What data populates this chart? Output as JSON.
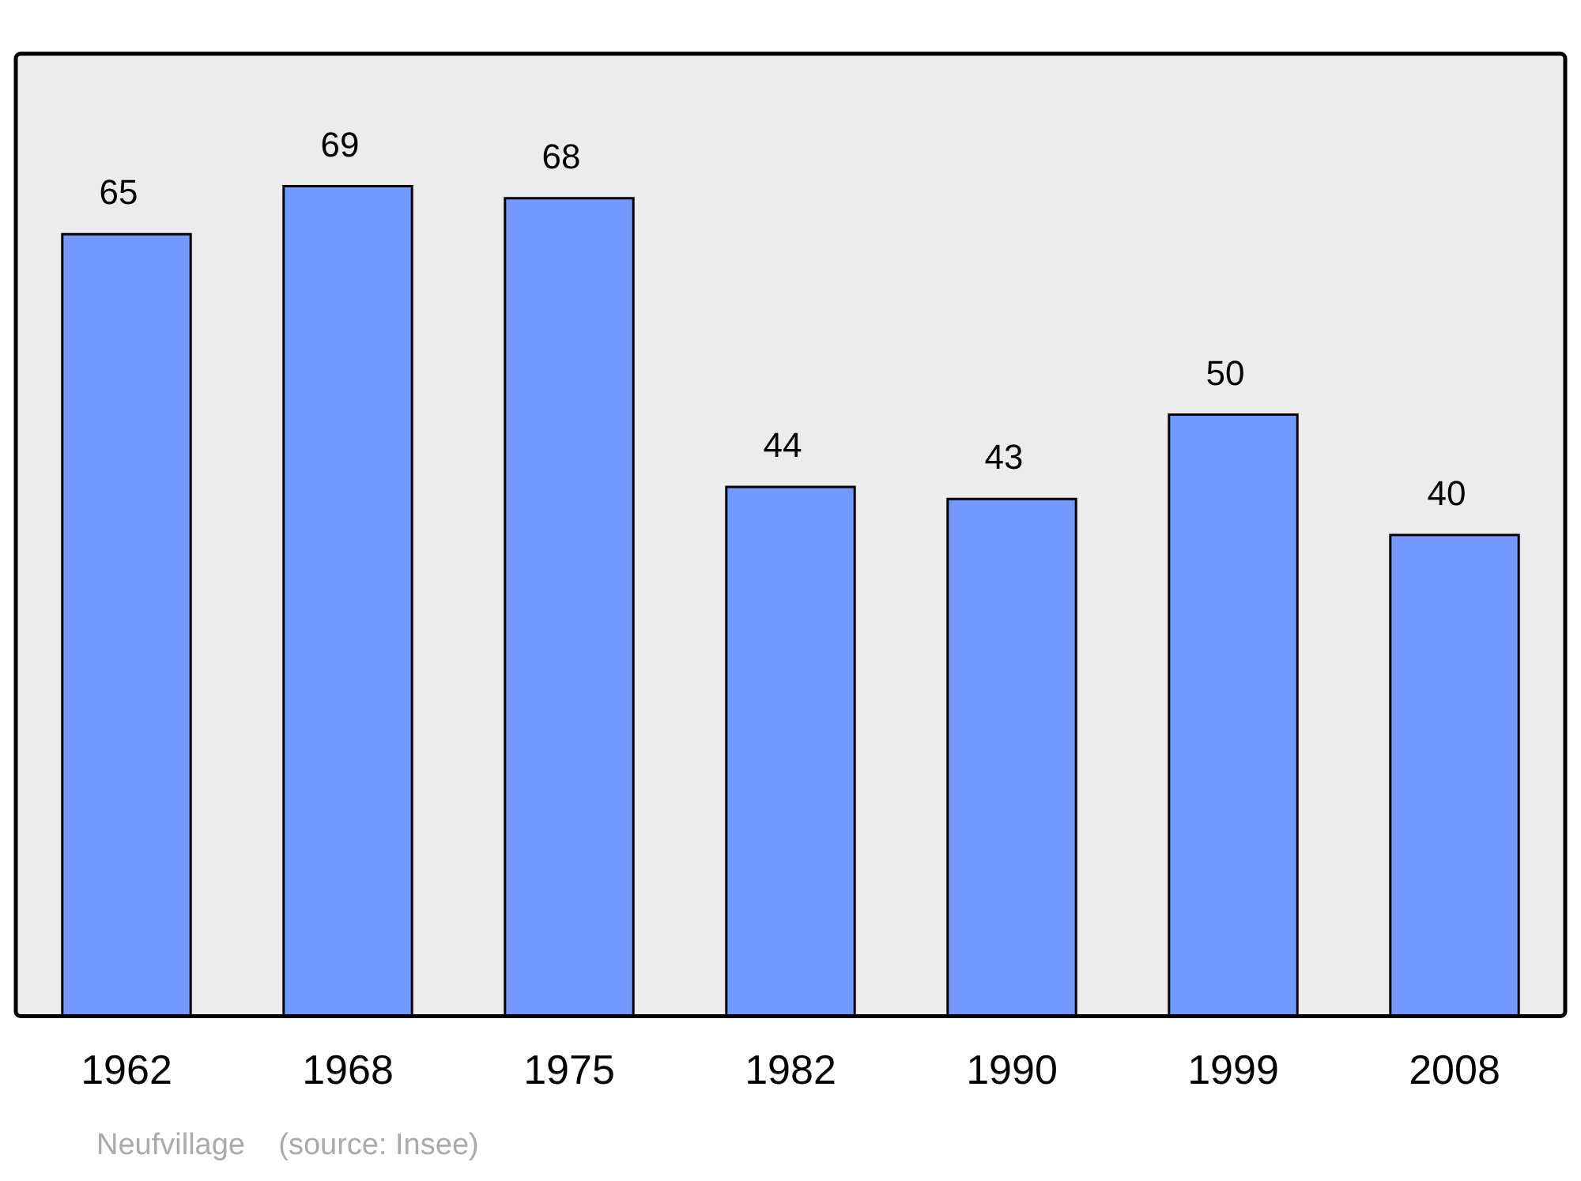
{
  "chart_data": {
    "type": "bar",
    "categories": [
      "1962",
      "1968",
      "1975",
      "1982",
      "1990",
      "1999",
      "2008"
    ],
    "values": [
      65,
      69,
      68,
      44,
      43,
      50,
      40
    ],
    "color": "#7399ff",
    "data_labels": true,
    "grid": false,
    "legend": false,
    "tick_labels": "x",
    "annotations": [
      "Neufvillage    (source: Insee)"
    ]
  }
}
